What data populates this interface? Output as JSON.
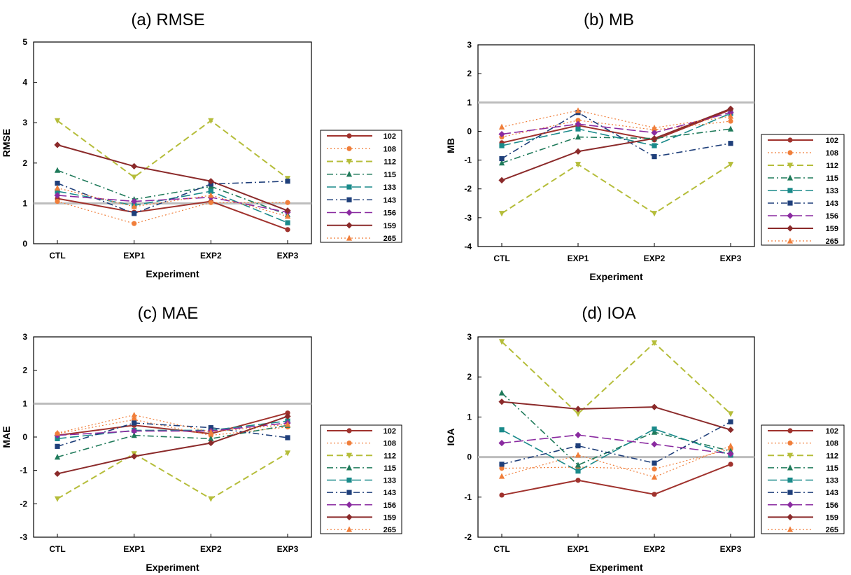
{
  "figure": {
    "series_names": [
      "102",
      "108",
      "112",
      "115",
      "133",
      "143",
      "156",
      "159",
      "265"
    ],
    "series_styles": {
      "102": {
        "color": "#a0322d",
        "dash": "solid",
        "marker": "circle",
        "width": 2
      },
      "108": {
        "color": "#f07e3a",
        "dash": "dot",
        "marker": "circle",
        "width": 1.2
      },
      "112": {
        "color": "#b5bd3a",
        "dash": "dash",
        "marker": "triangle-down",
        "width": 2
      },
      "115": {
        "color": "#1f7a5a",
        "dash": "dashdot",
        "marker": "triangle-up",
        "width": 1.6
      },
      "133": {
        "color": "#1a8a8a",
        "dash": "longdash",
        "marker": "square",
        "width": 1.6
      },
      "143": {
        "color": "#1f3f7a",
        "dash": "dashdot",
        "marker": "square",
        "width": 1.6
      },
      "156": {
        "color": "#8a2aa0",
        "dash": "longdash",
        "marker": "diamond",
        "width": 1.6
      },
      "159": {
        "color": "#8b2a2a",
        "dash": "solid",
        "marker": "diamond",
        "width": 2
      },
      "265": {
        "color": "#f07e3a",
        "dash": "dot",
        "marker": "triangle-up",
        "width": 1.2
      }
    }
  },
  "chart_data": [
    {
      "id": "a",
      "type": "line",
      "title": "(a) RMSE",
      "xlabel": "Experiment",
      "ylabel": "RMSE",
      "categories": [
        "CTL",
        "EXP1",
        "EXP2",
        "EXP3"
      ],
      "ylim": [
        0,
        5
      ],
      "yticks": [
        "0",
        "1",
        "2",
        "3",
        "4",
        "5"
      ],
      "reference_line": 1,
      "series": [
        {
          "name": "102",
          "values": [
            1.12,
            0.78,
            1.05,
            0.35
          ]
        },
        {
          "name": "108",
          "values": [
            1.05,
            0.5,
            1.02,
            1.02
          ]
        },
        {
          "name": "112",
          "values": [
            3.05,
            1.65,
            3.05,
            1.62
          ]
        },
        {
          "name": "115",
          "values": [
            1.82,
            1.1,
            1.42,
            0.72
          ]
        },
        {
          "name": "133",
          "values": [
            1.3,
            0.95,
            1.3,
            0.52
          ]
        },
        {
          "name": "143",
          "values": [
            1.5,
            0.75,
            1.48,
            1.55
          ]
        },
        {
          "name": "156",
          "values": [
            1.2,
            1.05,
            1.15,
            0.78
          ]
        },
        {
          "name": "159",
          "values": [
            2.45,
            1.92,
            1.55,
            0.82
          ]
        },
        {
          "name": "265",
          "values": [
            1.38,
            0.92,
            1.2,
            0.68
          ]
        }
      ]
    },
    {
      "id": "b",
      "type": "line",
      "title": "(b) MB",
      "xlabel": "Experiment",
      "ylabel": "MB",
      "categories": [
        "CTL",
        "EXP1",
        "EXP2",
        "EXP3"
      ],
      "ylim": [
        -4,
        3
      ],
      "yticks": [
        "-4",
        "-3",
        "-2",
        "-1",
        "0",
        "1",
        "2",
        "3"
      ],
      "reference_line": 1,
      "series": [
        {
          "name": "102",
          "values": [
            -0.4,
            0.2,
            -0.3,
            0.75
          ]
        },
        {
          "name": "108",
          "values": [
            -0.2,
            0.38,
            0.05,
            0.35
          ]
        },
        {
          "name": "112",
          "values": [
            -2.85,
            -1.15,
            -2.85,
            -1.15
          ]
        },
        {
          "name": "115",
          "values": [
            -1.1,
            -0.2,
            -0.25,
            0.08
          ]
        },
        {
          "name": "133",
          "values": [
            -0.5,
            0.08,
            -0.5,
            0.62
          ]
        },
        {
          "name": "143",
          "values": [
            -0.95,
            0.65,
            -0.88,
            -0.42
          ]
        },
        {
          "name": "156",
          "values": [
            -0.1,
            0.25,
            -0.05,
            0.65
          ]
        },
        {
          "name": "159",
          "values": [
            -1.7,
            -0.7,
            -0.25,
            0.78
          ]
        },
        {
          "name": "265",
          "values": [
            0.15,
            0.72,
            0.12,
            0.52
          ]
        }
      ]
    },
    {
      "id": "c",
      "type": "line",
      "title": "(c) MAE",
      "xlabel": "Experiment",
      "ylabel": "MAE",
      "categories": [
        "CTL",
        "EXP1",
        "EXP2",
        "EXP3"
      ],
      "ylim": [
        -3,
        3
      ],
      "yticks": [
        "-3",
        "-2",
        "-1",
        "0",
        "1",
        "2",
        "3"
      ],
      "reference_line": 1,
      "series": [
        {
          "name": "102",
          "values": [
            0.05,
            0.35,
            0.1,
            0.72
          ]
        },
        {
          "name": "108",
          "values": [
            0.1,
            0.52,
            0.05,
            0.3
          ]
        },
        {
          "name": "112",
          "values": [
            -1.85,
            -0.5,
            -1.85,
            -0.48
          ]
        },
        {
          "name": "115",
          "values": [
            -0.6,
            0.05,
            -0.05,
            0.35
          ]
        },
        {
          "name": "133",
          "values": [
            -0.05,
            0.2,
            0.2,
            0.48
          ]
        },
        {
          "name": "143",
          "values": [
            -0.28,
            0.42,
            0.28,
            -0.02
          ]
        },
        {
          "name": "156",
          "values": [
            0.05,
            0.18,
            0.18,
            0.42
          ]
        },
        {
          "name": "159",
          "values": [
            -1.1,
            -0.58,
            -0.18,
            0.62
          ]
        },
        {
          "name": "265",
          "values": [
            0.12,
            0.66,
            0.15,
            0.38
          ]
        }
      ]
    },
    {
      "id": "d",
      "type": "line",
      "title": "(d) IOA",
      "xlabel": "Experiment",
      "ylabel": "IOA",
      "categories": [
        "CTL",
        "EXP1",
        "EXP2",
        "EXP3"
      ],
      "ylim": [
        -2,
        3
      ],
      "yticks": [
        "-2",
        "-1",
        "0",
        "1",
        "2",
        "3"
      ],
      "reference_line": 0,
      "series": [
        {
          "name": "102",
          "values": [
            -0.95,
            -0.58,
            -0.93,
            -0.18
          ]
        },
        {
          "name": "108",
          "values": [
            -0.28,
            -0.25,
            -0.3,
            0.2
          ]
        },
        {
          "name": "112",
          "values": [
            2.88,
            1.08,
            2.85,
            1.08
          ]
        },
        {
          "name": "115",
          "values": [
            1.6,
            -0.2,
            0.62,
            0.15
          ]
        },
        {
          "name": "133",
          "values": [
            0.68,
            -0.35,
            0.7,
            0.05
          ]
        },
        {
          "name": "143",
          "values": [
            -0.18,
            0.28,
            -0.15,
            0.88
          ]
        },
        {
          "name": "156",
          "values": [
            0.35,
            0.55,
            0.32,
            0.08
          ]
        },
        {
          "name": "159",
          "values": [
            1.38,
            1.2,
            1.25,
            0.68
          ]
        },
        {
          "name": "265",
          "values": [
            -0.48,
            0.05,
            -0.5,
            0.28
          ]
        }
      ]
    }
  ]
}
